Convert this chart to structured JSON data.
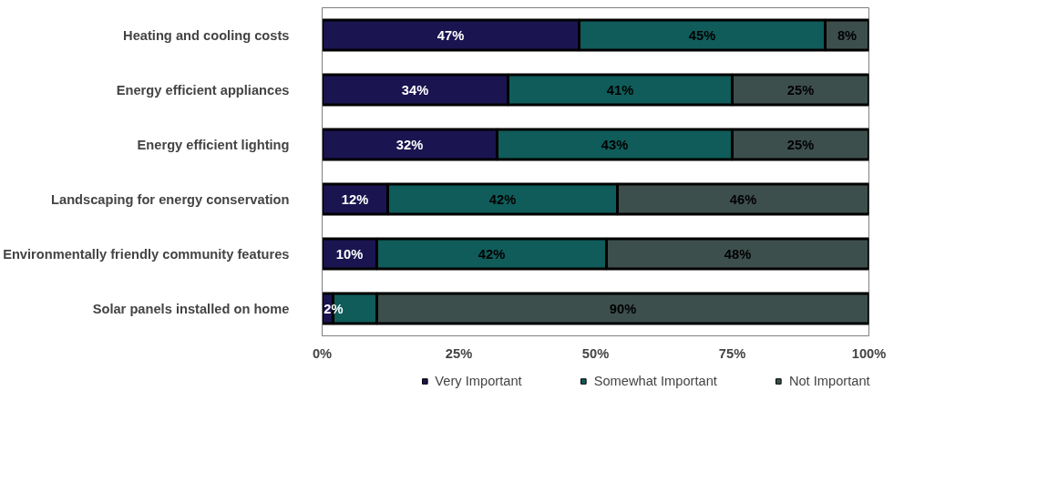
{
  "chart_data": {
    "type": "bar",
    "orientation": "horizontal",
    "stacked": true,
    "categories": [
      "Heating and cooling costs",
      "Energy efficient appliances",
      "Energy efficient lighting",
      "Landscaping for energy conservation",
      "Environmentally friendly community features",
      "Solar panels installed on home"
    ],
    "series": [
      {
        "name": "Very Important",
        "color": "#1a1450",
        "values": [
          47,
          34,
          32,
          12,
          10,
          2
        ],
        "value_labels": [
          "47%",
          "34%",
          "32%",
          "12%",
          "10%",
          "2%"
        ]
      },
      {
        "name": "Somewhat Important",
        "color": "#0f5c5a",
        "values": [
          45,
          41,
          43,
          42,
          42,
          8
        ],
        "value_labels": [
          "45%",
          "41%",
          "43%",
          "42%",
          "42%",
          null
        ]
      },
      {
        "name": "Not Important",
        "color": "#3d4f4d",
        "values": [
          8,
          25,
          25,
          46,
          48,
          90
        ],
        "value_labels": [
          "8%",
          "25%",
          "25%",
          "46%",
          "48%",
          "90%"
        ]
      }
    ],
    "xlim": [
      0,
      100
    ],
    "xticks": [
      {
        "value": 0,
        "label": "0%"
      },
      {
        "value": 25,
        "label": "25%"
      },
      {
        "value": 50,
        "label": "50%"
      },
      {
        "value": 75,
        "label": "75%"
      },
      {
        "value": 100,
        "label": "100%"
      }
    ],
    "grid": false,
    "legend": "bottom"
  }
}
